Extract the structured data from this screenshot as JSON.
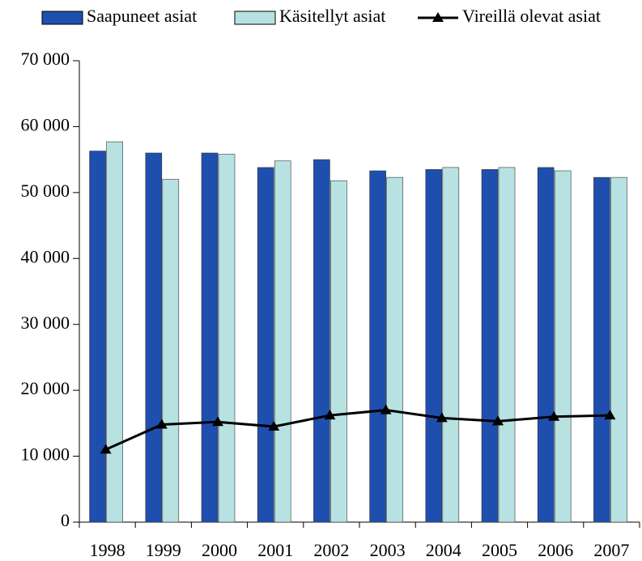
{
  "chart_data": {
    "type": "bar",
    "categories": [
      "1998",
      "1999",
      "2000",
      "2001",
      "2002",
      "2003",
      "2004",
      "2005",
      "2006",
      "2007"
    ],
    "series": [
      {
        "name": "Saapuneet asiat",
        "type": "bar",
        "color": "#1f4fae",
        "values": [
          56300,
          56000,
          56000,
          53800,
          55000,
          53300,
          53500,
          53500,
          53800,
          52300
        ]
      },
      {
        "name": "Käsitellyt asiat",
        "type": "bar",
        "color": "#b8e2e2",
        "values": [
          57700,
          52000,
          55800,
          54800,
          51800,
          52300,
          53800,
          53800,
          53300,
          52300
        ]
      },
      {
        "name": "Vireillä olevat asiat",
        "type": "line",
        "color": "#000000",
        "values": [
          11000,
          14800,
          15200,
          14500,
          16200,
          17000,
          15800,
          15300,
          16000,
          16200
        ]
      }
    ],
    "ylim": [
      0,
      70000
    ],
    "yticks": [
      0,
      {
        "value": 10000,
        "label": "10 000"
      },
      {
        "value": 20000,
        "label": "20 000"
      },
      {
        "value": 30000,
        "label": "30 000"
      },
      {
        "value": 40000,
        "label": "40 000"
      },
      {
        "value": 50000,
        "label": "50 000"
      },
      {
        "value": 60000,
        "label": "60 000"
      },
      {
        "value": 70000,
        "label": "70 000"
      }
    ],
    "legend": "top"
  }
}
